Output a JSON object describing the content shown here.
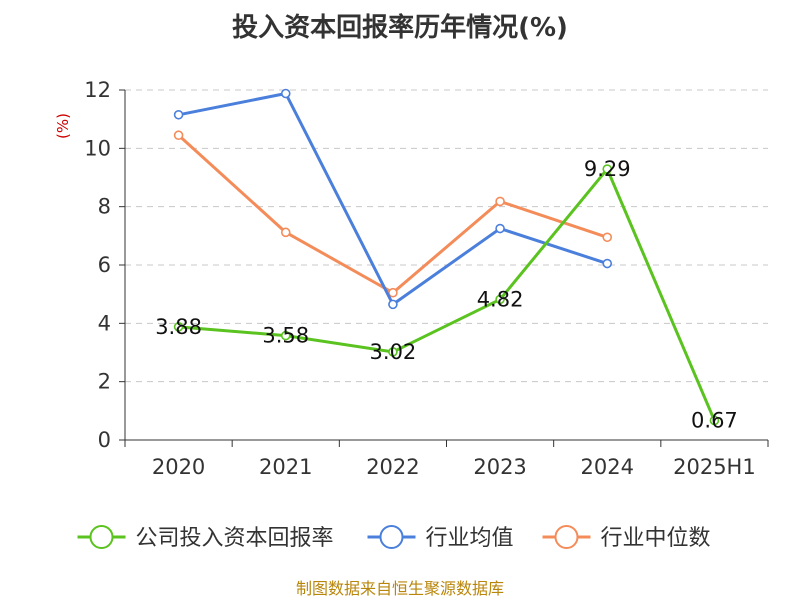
{
  "chart_data": {
    "type": "line",
    "title": "投入资本回报率历年情况(%)",
    "ylabel": "(%)",
    "xlabel": "",
    "categories": [
      "2020",
      "2021",
      "2022",
      "2023",
      "2024",
      "2025H1"
    ],
    "ylim": [
      0,
      12
    ],
    "yticks": [
      0,
      2,
      4,
      6,
      8,
      10,
      12
    ],
    "grid": true,
    "legend_position": "bottom",
    "series": [
      {
        "name": "公司投入资本回报率",
        "color": "#5ac31f",
        "values": [
          3.88,
          3.58,
          3.02,
          4.82,
          9.29,
          0.67
        ],
        "labels": [
          "3.88",
          "3.58",
          "3.02",
          "4.82",
          "9.29",
          "0.67"
        ]
      },
      {
        "name": "行业均值",
        "color": "#4b7fdc",
        "values": [
          11.15,
          11.88,
          4.65,
          7.25,
          6.05,
          null
        ]
      },
      {
        "name": "行业中位数",
        "color": "#f48c5a",
        "values": [
          10.45,
          7.12,
          5.05,
          8.18,
          6.95,
          null
        ]
      }
    ]
  },
  "source": "制图数据来自恒生聚源数据库"
}
